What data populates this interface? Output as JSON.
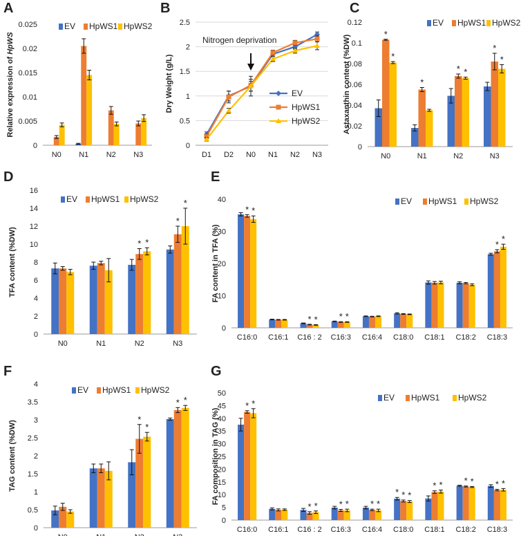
{
  "colors": {
    "EV": "#4472C4",
    "HpWS1": "#ED7D31",
    "HpWS2": "#FFC000"
  },
  "chart_data": [
    {
      "id": "A",
      "type": "bar",
      "ylabel_prefix": "Relative expression of ",
      "ylabel_gene": "HpWS",
      "categories": [
        "N0",
        "N1",
        "N2",
        "N3"
      ],
      "ylim": [
        0,
        0.025
      ],
      "yticks": [
        0,
        0.005,
        0.01,
        0.015,
        0.02,
        0.025
      ],
      "ytick_labels": [
        "0",
        "0.005",
        "0.01",
        "0.015",
        "0.02",
        "0.025"
      ],
      "legend": [
        "EV",
        "HpWS1",
        "HpWS2"
      ],
      "series": [
        {
          "name": "EV",
          "values": [
            0.0,
            0.0003,
            0.0,
            0.0
          ],
          "errors": [
            0,
            0.0001,
            0,
            0
          ]
        },
        {
          "name": "HpWS1",
          "values": [
            0.0017,
            0.0205,
            0.0072,
            0.0045
          ],
          "errors": [
            0.0003,
            0.0015,
            0.0008,
            0.0005
          ]
        },
        {
          "name": "HpWS2",
          "values": [
            0.0042,
            0.0145,
            0.0044,
            0.0056
          ],
          "errors": [
            0.0004,
            0.001,
            0.0004,
            0.0007
          ]
        }
      ],
      "stars": []
    },
    {
      "id": "B",
      "type": "line",
      "ylabel": "Dry Weight  (g/L)",
      "categories": [
        "D1",
        "D2",
        "N0",
        "N1",
        "N2",
        "N3"
      ],
      "ylim": [
        0,
        2.5
      ],
      "yticks": [
        0,
        0.5,
        1,
        1.5,
        2,
        2.5
      ],
      "ytick_labels": [
        "0",
        "0.5",
        "1",
        "1.5",
        "2",
        "2.5"
      ],
      "annotation": "Nitrogen deprivation",
      "annotation_at": "N0",
      "legend": [
        "EV",
        "HpWS1",
        "HpWS2"
      ],
      "series": [
        {
          "name": "EV",
          "marker": "diamond",
          "values": [
            0.22,
            1.0,
            1.2,
            1.85,
            2.0,
            2.25
          ],
          "errors": [
            0.05,
            0.1,
            0.1,
            0.05,
            0.05,
            0.05
          ]
        },
        {
          "name": "HpWS1",
          "marker": "square",
          "values": [
            0.18,
            0.98,
            1.22,
            1.88,
            2.08,
            2.16
          ],
          "errors": [
            0.05,
            0.12,
            0.12,
            0.05,
            0.05,
            0.06
          ]
        },
        {
          "name": "HpWS2",
          "marker": "triangle",
          "values": [
            0.12,
            0.7,
            1.2,
            1.75,
            1.92,
            2.02
          ],
          "errors": [
            0.04,
            0.05,
            0.2,
            0.05,
            0.05,
            0.08
          ]
        }
      ]
    },
    {
      "id": "C",
      "type": "bar",
      "ylabel": "Astaxanthin content (%DW)",
      "categories": [
        "N0",
        "N1",
        "N2",
        "N3"
      ],
      "ylim": [
        0,
        0.12
      ],
      "yticks": [
        0,
        0.02,
        0.04,
        0.06,
        0.08,
        0.1,
        0.12
      ],
      "ytick_labels": [
        "0",
        "0.02",
        "0.04",
        "0.06",
        "0.08",
        "0.1",
        "0.12"
      ],
      "legend": [
        "EV",
        "HpWS1",
        "HpWS2"
      ],
      "series": [
        {
          "name": "EV",
          "values": [
            0.037,
            0.018,
            0.049,
            0.058
          ],
          "errors": [
            0.008,
            0.003,
            0.007,
            0.004
          ]
        },
        {
          "name": "HpWS1",
          "values": [
            0.103,
            0.055,
            0.068,
            0.082
          ],
          "errors": [
            0.0005,
            0.002,
            0.002,
            0.008
          ]
        },
        {
          "name": "HpWS2",
          "values": [
            0.081,
            0.035,
            0.066,
            0.075
          ],
          "errors": [
            0.001,
            0.001,
            0.001,
            0.004
          ]
        }
      ],
      "stars": [
        [
          0,
          1
        ],
        [
          0,
          2
        ],
        [
          1,
          1
        ],
        [
          2,
          1
        ],
        [
          2,
          2
        ],
        [
          3,
          1
        ],
        [
          3,
          2
        ]
      ]
    },
    {
      "id": "D",
      "type": "bar",
      "ylabel": "TFA content (%DW)",
      "categories": [
        "N0",
        "N1",
        "N2",
        "N3"
      ],
      "ylim": [
        0,
        16
      ],
      "yticks": [
        0,
        2,
        4,
        6,
        8,
        10,
        12,
        14,
        16
      ],
      "ytick_labels": [
        "0",
        "2",
        "4",
        "6",
        "8",
        "10",
        "12",
        "14",
        "16"
      ],
      "legend": [
        "EV",
        "HpWS1",
        "HpWS2"
      ],
      "series": [
        {
          "name": "EV",
          "values": [
            7.3,
            7.6,
            7.7,
            9.4
          ],
          "errors": [
            0.6,
            0.4,
            0.6,
            0.4
          ]
        },
        {
          "name": "HpWS1",
          "values": [
            7.3,
            7.9,
            8.9,
            11.1
          ],
          "errors": [
            0.2,
            0.2,
            0.6,
            0.9
          ]
        },
        {
          "name": "HpWS2",
          "values": [
            6.9,
            7.1,
            9.2,
            12.0
          ],
          "errors": [
            0.3,
            1.3,
            0.4,
            2.0
          ]
        }
      ],
      "stars": [
        [
          2,
          1
        ],
        [
          2,
          2
        ],
        [
          3,
          1
        ],
        [
          3,
          2
        ]
      ]
    },
    {
      "id": "E",
      "type": "bar",
      "ylabel": "FA content in TFA (%)",
      "categories": [
        "C16:0",
        "C16:1",
        "C16 : 2",
        "C16:3",
        "C16:4",
        "C18:0",
        "C18:1",
        "C18:2",
        "C18:3"
      ],
      "ylim": [
        0,
        40
      ],
      "yticks": [
        0,
        10,
        20,
        30,
        40
      ],
      "ytick_labels": [
        "0",
        "10",
        "20",
        "30",
        "40"
      ],
      "legend": [
        "EV",
        "HpWS1",
        "HpWS2"
      ],
      "series": [
        {
          "name": "EV",
          "values": [
            35.3,
            2.6,
            1.4,
            2.0,
            3.6,
            4.5,
            14.1,
            14.0,
            22.9
          ],
          "errors": [
            0.5,
            0.1,
            0.1,
            0.1,
            0.1,
            0.2,
            0.5,
            0.3,
            0.3
          ]
        },
        {
          "name": "HpWS1",
          "values": [
            34.8,
            2.5,
            1.0,
            1.8,
            3.5,
            4.3,
            14.0,
            13.9,
            23.8
          ],
          "errors": [
            0.4,
            0.1,
            0.1,
            0.1,
            0.1,
            0.1,
            0.4,
            0.2,
            0.5
          ]
        },
        {
          "name": "HpWS2",
          "values": [
            33.8,
            2.5,
            0.9,
            1.8,
            3.6,
            4.2,
            14.1,
            13.4,
            25.2
          ],
          "errors": [
            1.0,
            0.1,
            0.1,
            0.1,
            0.1,
            0.1,
            0.4,
            0.3,
            0.8
          ]
        }
      ],
      "stars": [
        [
          0,
          1
        ],
        [
          0,
          2
        ],
        [
          2,
          1
        ],
        [
          2,
          2
        ],
        [
          3,
          1
        ],
        [
          3,
          2
        ],
        [
          8,
          1
        ],
        [
          8,
          2
        ]
      ]
    },
    {
      "id": "F",
      "type": "bar",
      "ylabel": "TAG content (%DW)",
      "categories": [
        "N0",
        "N1",
        "N2",
        "N3"
      ],
      "ylim": [
        0,
        4
      ],
      "yticks": [
        0,
        0.5,
        1,
        1.5,
        2,
        2.5,
        3,
        3.5,
        4
      ],
      "ytick_labels": [
        "0",
        "0.5",
        "1",
        "1.5",
        "2",
        "2.5",
        "3",
        "3.5",
        "4"
      ],
      "legend": [
        "EV",
        "HpWS1",
        "HpWS2"
      ],
      "series": [
        {
          "name": "EV",
          "values": [
            0.48,
            1.65,
            1.82,
            3.02
          ],
          "errors": [
            0.12,
            0.12,
            0.35,
            0.03
          ]
        },
        {
          "name": "HpWS1",
          "values": [
            0.58,
            1.65,
            2.47,
            3.27
          ],
          "errors": [
            0.1,
            0.12,
            0.4,
            0.07
          ]
        },
        {
          "name": "HpWS2",
          "values": [
            0.45,
            1.58,
            2.53,
            3.33
          ],
          "errors": [
            0.05,
            0.25,
            0.12,
            0.07
          ]
        }
      ],
      "stars": [
        [
          2,
          1
        ],
        [
          2,
          2
        ],
        [
          3,
          1
        ],
        [
          3,
          2
        ]
      ]
    },
    {
      "id": "G",
      "type": "bar",
      "ylabel": "FA composition in TAG (%)",
      "categories": [
        "C16:0",
        "C16:1",
        "C16 : 2",
        "C16:3",
        "C16:4",
        "C18:0",
        "C18:1",
        "C18:2",
        "C18:3"
      ],
      "ylim": [
        0,
        50
      ],
      "yticks": [
        0,
        5,
        10,
        15,
        20,
        25,
        30,
        35,
        40,
        45,
        50
      ],
      "ytick_labels": [
        "0",
        "5",
        "10",
        "15",
        "20",
        "25",
        "30",
        "35",
        "40",
        "45",
        "50"
      ],
      "legend": [
        "EV",
        "HpWS1",
        "HpWS2"
      ],
      "series": [
        {
          "name": "EV",
          "values": [
            37.5,
            4.4,
            4.0,
            4.9,
            4.9,
            8.4,
            8.5,
            13.5,
            13.4
          ],
          "errors": [
            2.5,
            0.4,
            0.6,
            0.5,
            0.5,
            0.5,
            1.0,
            0.2,
            0.5
          ]
        },
        {
          "name": "HpWS1",
          "values": [
            42.5,
            4.0,
            2.8,
            3.8,
            4.0,
            7.5,
            11.0,
            13.2,
            11.8
          ],
          "errors": [
            0.5,
            0.4,
            0.5,
            0.4,
            0.3,
            0.4,
            0.5,
            0.2,
            0.3
          ]
        },
        {
          "name": "HpWS2",
          "values": [
            42.0,
            4.1,
            3.1,
            3.8,
            3.8,
            7.3,
            11.2,
            13.0,
            11.9
          ],
          "errors": [
            1.8,
            0.3,
            0.5,
            0.5,
            0.5,
            0.4,
            0.6,
            0.2,
            0.5
          ]
        }
      ],
      "stars": [
        [
          0,
          1
        ],
        [
          0,
          2
        ],
        [
          2,
          1
        ],
        [
          2,
          2
        ],
        [
          3,
          1
        ],
        [
          3,
          2
        ],
        [
          4,
          1
        ],
        [
          4,
          2
        ],
        [
          5,
          0
        ],
        [
          5,
          1
        ],
        [
          5,
          2
        ],
        [
          6,
          1
        ],
        [
          6,
          2
        ],
        [
          7,
          1
        ],
        [
          7,
          2
        ],
        [
          8,
          1
        ],
        [
          8,
          2
        ]
      ]
    }
  ]
}
